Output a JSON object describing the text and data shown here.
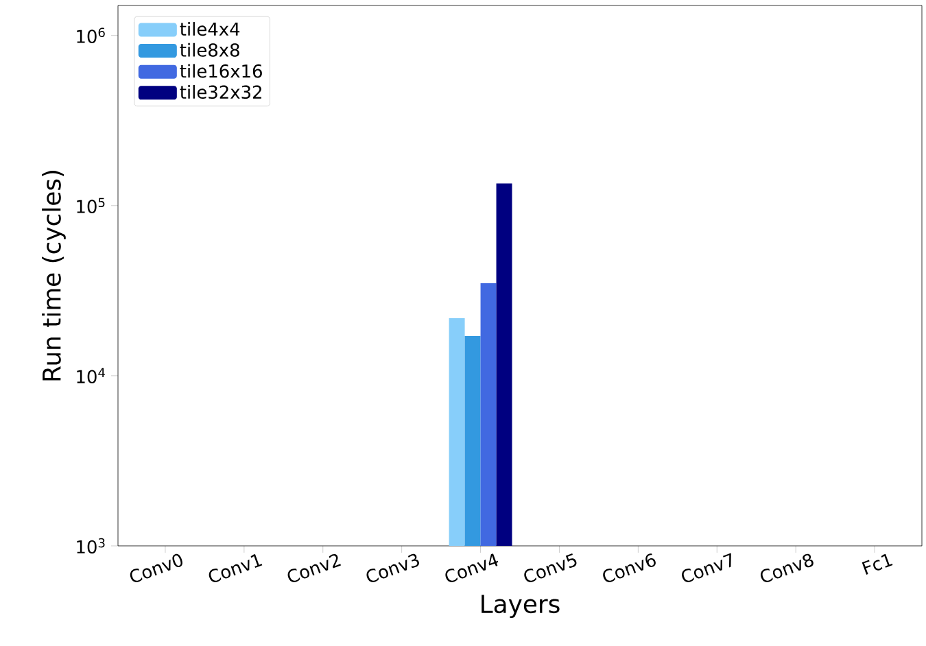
{
  "chart_data": {
    "type": "bar",
    "xlabel": "Layers",
    "ylabel": "Run time (cycles)",
    "categories": [
      "Conv0",
      "Conv1",
      "Conv2",
      "Conv3",
      "Conv4",
      "Conv5",
      "Conv6",
      "Conv7",
      "Conv8",
      "Fc1"
    ],
    "series": [
      {
        "name": "tile4x4",
        "color": "#87cefa",
        "values": [
          null,
          null,
          null,
          null,
          21800,
          null,
          null,
          null,
          null,
          null
        ]
      },
      {
        "name": "tile8x8",
        "color": "#3399e0",
        "values": [
          null,
          null,
          null,
          null,
          17100,
          null,
          null,
          null,
          null,
          null
        ]
      },
      {
        "name": "tile16x16",
        "color": "#4169e1",
        "values": [
          null,
          null,
          null,
          null,
          35000,
          null,
          null,
          null,
          null,
          null
        ]
      },
      {
        "name": "tile32x32",
        "color": "#000080",
        "values": [
          null,
          null,
          null,
          null,
          135000,
          null,
          null,
          null,
          null,
          null
        ]
      }
    ],
    "log": "y",
    "ylim": [
      1000,
      1500000
    ],
    "yticks": [
      {
        "value": 1000,
        "label": "10$^{3}$"
      },
      {
        "value": 10000,
        "label": "10$^{4}$"
      },
      {
        "value": 100000,
        "label": "10$^{5}$"
      },
      {
        "value": 1000000,
        "label": "10$^{6}$"
      }
    ],
    "legend": "top left",
    "grid": false
  }
}
